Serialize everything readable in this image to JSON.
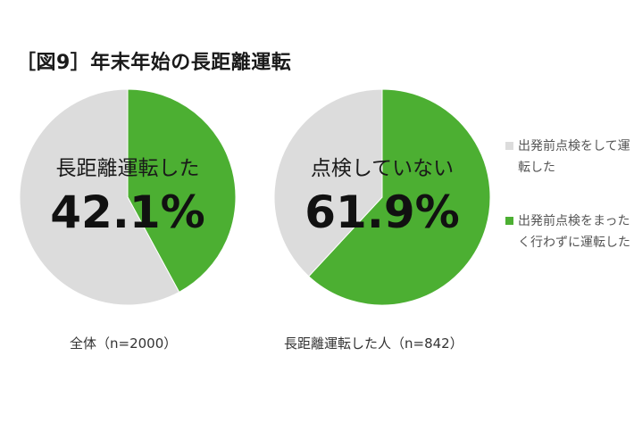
{
  "title": "［図9］年末年始の長距離運転",
  "colors": {
    "green": "#4caf32",
    "gray": "#dcdcdc"
  },
  "chart_data": [
    {
      "type": "pie",
      "center_label": "長距離運転した",
      "center_value": "42.1%",
      "caption": "全体（n=2000）",
      "slices": [
        {
          "label": "長距離運転した",
          "value": 42.1,
          "color": "#4caf32"
        },
        {
          "value": 57.9,
          "color": "#dcdcdc"
        }
      ]
    },
    {
      "type": "pie",
      "center_label": "点検していない",
      "center_value": "61.9%",
      "caption": "長距離運転した人（n=842）",
      "slices": [
        {
          "label": "出発前点検をまったく行わずに運転した",
          "value": 61.9,
          "color": "#4caf32"
        },
        {
          "label": "出発前点検をして運転した",
          "value": 38.1,
          "color": "#dcdcdc"
        }
      ]
    }
  ],
  "legend": [
    {
      "label": "出発前点検をして運転した",
      "color": "#dcdcdc"
    },
    {
      "label": "出発前点検をまったく行わずに運転した",
      "color": "#4caf32"
    }
  ]
}
